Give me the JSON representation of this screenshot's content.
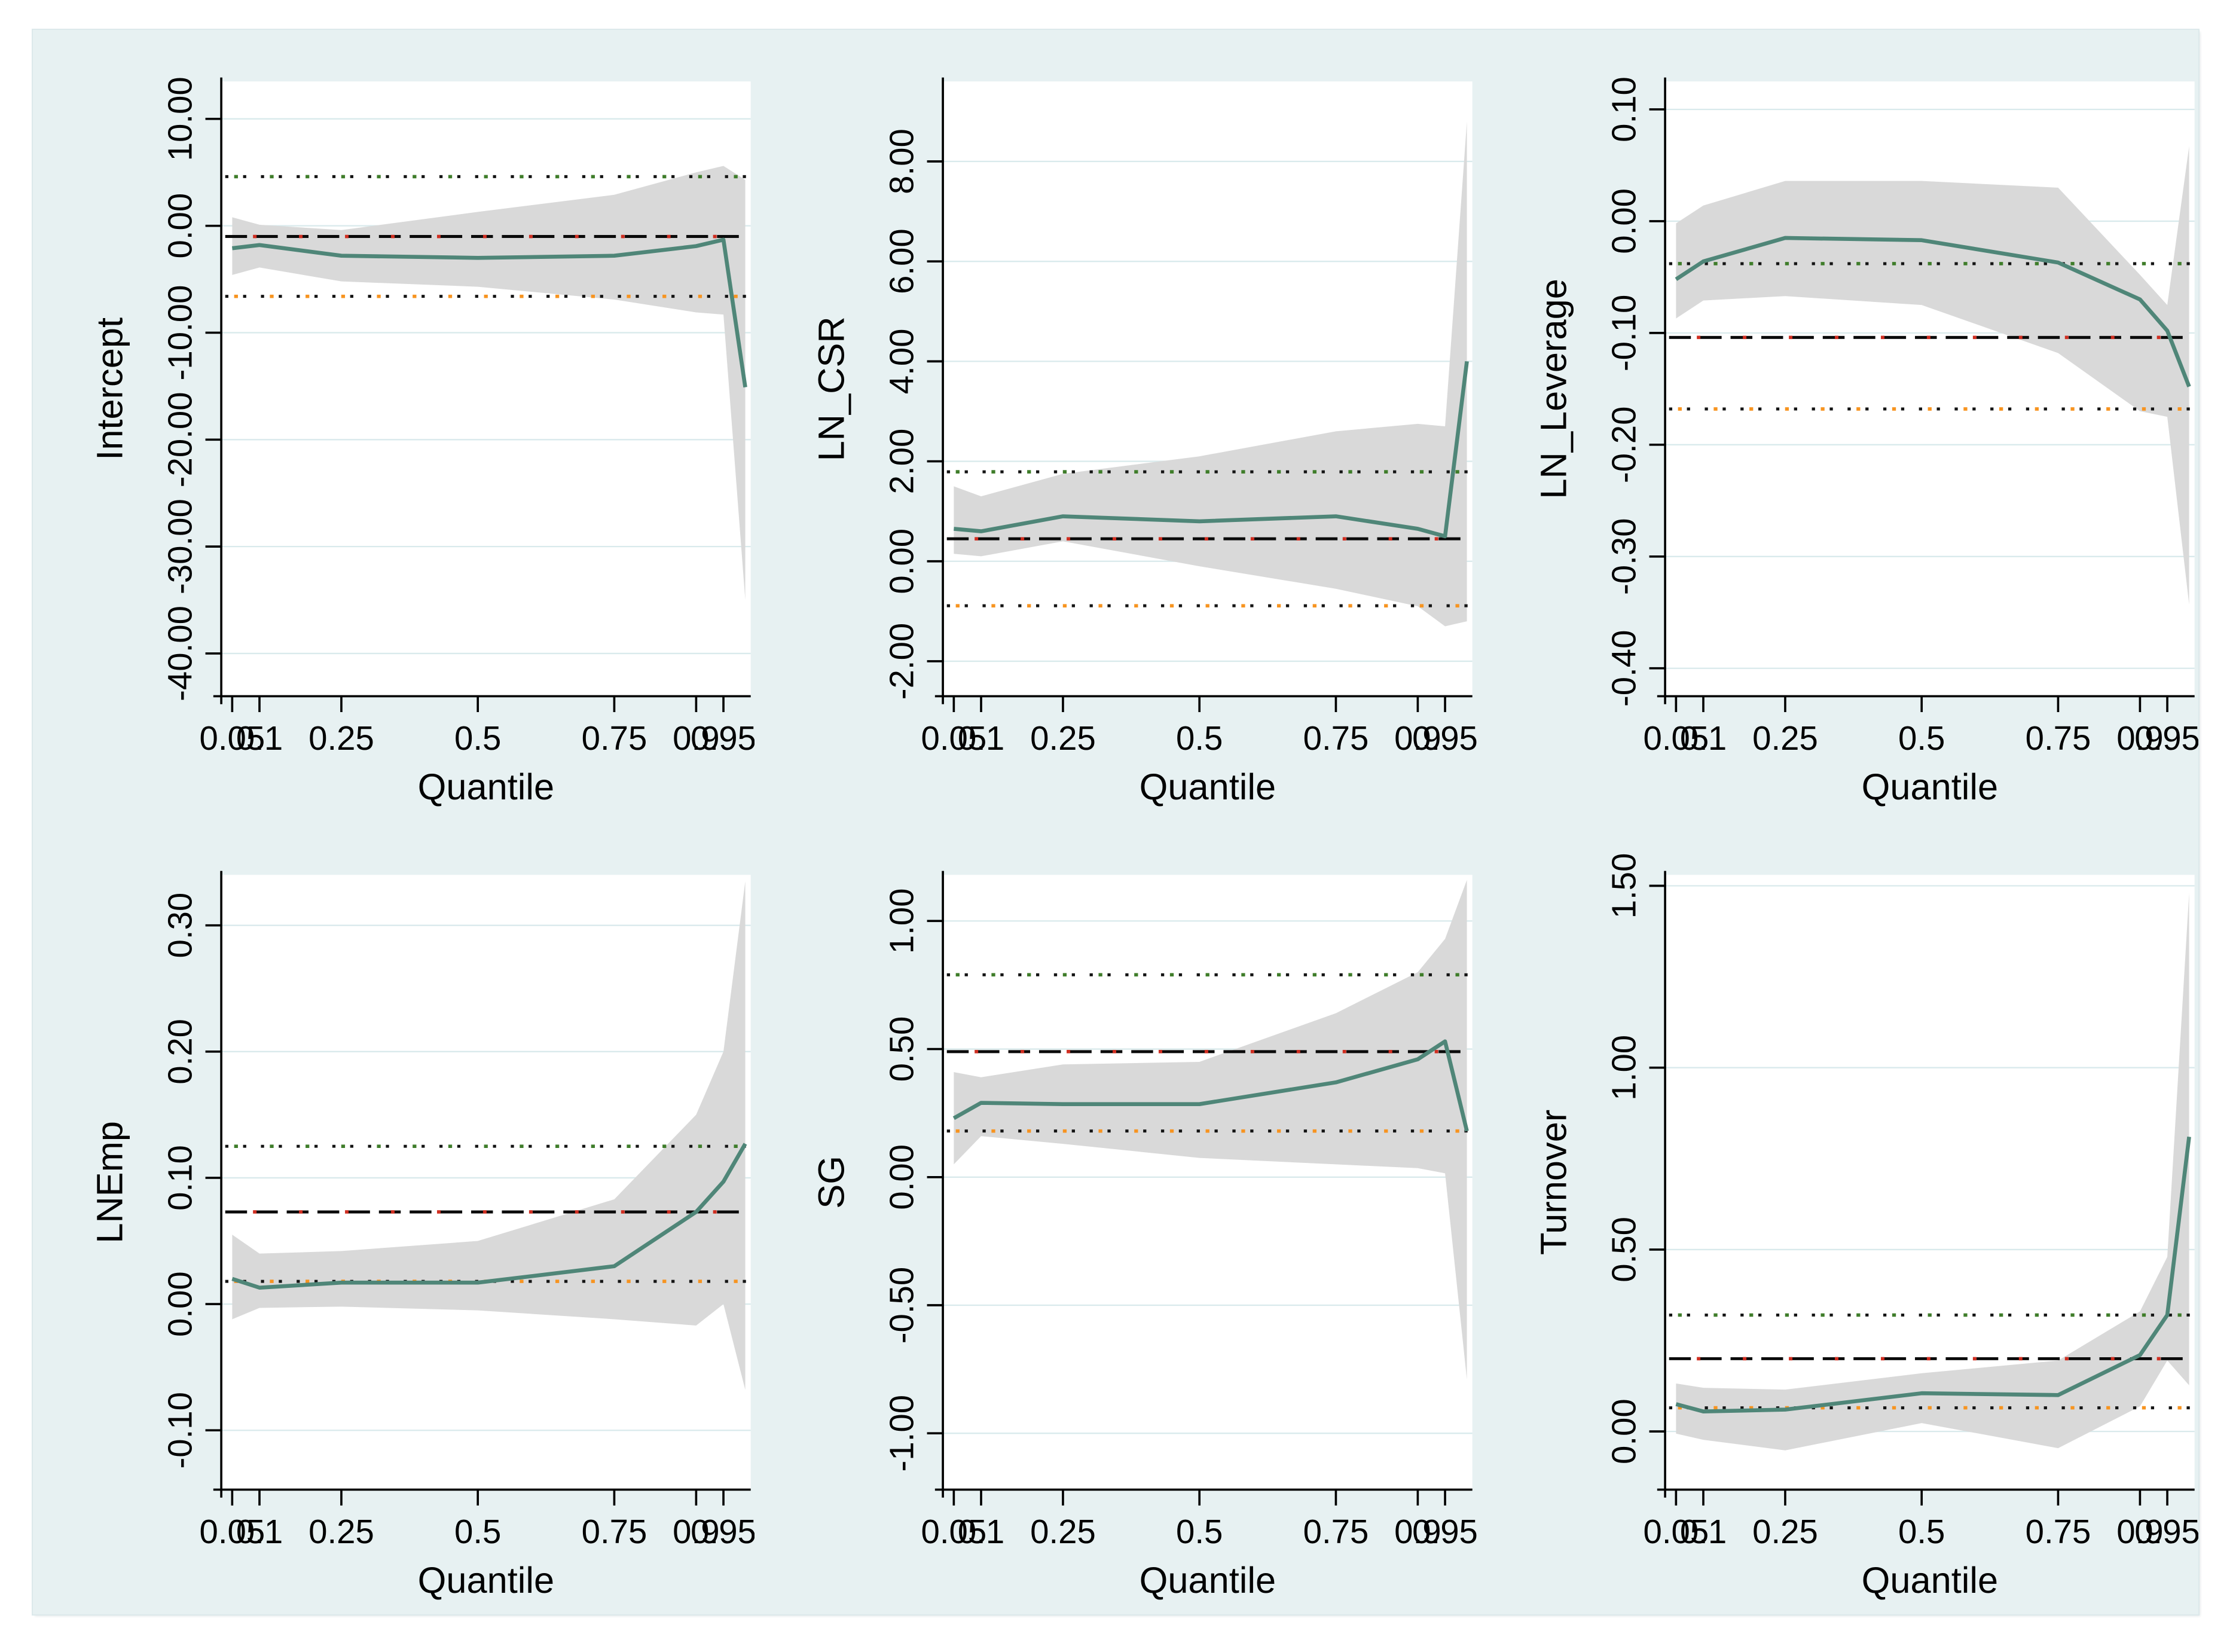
{
  "colors": {
    "page_background": "#ffffff",
    "region_background": "#e7f1f2",
    "plot_background": "#ffffff",
    "gridline": "#d9eaec",
    "axis": "#000000",
    "text": "#000000",
    "ci_band": "#d9d9d9",
    "qreg_line": "#4f8678",
    "ols_dash": "#0a0a0a",
    "ols_dash_accent": "#cf2e21",
    "ols_ci_dot_black": "#141414",
    "ols_ci_dot_green": "#3f7d2a",
    "ols_ci_dot_orange": "#f79420"
  },
  "chart_data": {
    "type": "line",
    "xlabel": "Quantile",
    "xlim": [
      0.03,
      1.0
    ],
    "x_tick_values": [
      0.05,
      0.1,
      0.25,
      0.5,
      0.75,
      0.9,
      0.95
    ],
    "x_tick_labels": [
      "0.05",
      "0.1",
      "0.25",
      "0.5",
      "0.75",
      "0.9",
      "0.95"
    ],
    "quantiles": [
      0.05,
      0.1,
      0.25,
      0.5,
      0.75,
      0.9,
      0.95,
      0.99
    ],
    "grid": true,
    "legend_position": "none",
    "panels": [
      {
        "id": "intercept",
        "ylabel": "Intercept",
        "ylim": [
          -44,
          13.5
        ],
        "ytick_values": [
          10,
          0,
          -10,
          -20,
          -30,
          -40
        ],
        "ytick_labels": [
          "10.00",
          "0.00",
          "-10.00",
          "-20.00",
          "-30.00",
          "-40.00"
        ],
        "qreg_estimate": [
          -2.1,
          -1.8,
          -2.8,
          -3.0,
          -2.8,
          -1.9,
          -1.3,
          -15.1
        ],
        "band_upper": [
          0.8,
          0.1,
          -0.4,
          1.3,
          2.9,
          5.0,
          5.6,
          4.3
        ],
        "band_lower": [
          -4.6,
          -3.9,
          -5.2,
          -5.7,
          -6.9,
          -8.1,
          -8.3,
          -35.0
        ],
        "ols_estimate": -1.0,
        "ols_ci_upper": 4.6,
        "ols_ci_lower": -6.6
      },
      {
        "id": "ln-csr",
        "ylabel": "LN_CSR",
        "ylim": [
          -2.7,
          9.6
        ],
        "ytick_values": [
          8,
          6,
          4,
          2,
          0,
          -2
        ],
        "ytick_labels": [
          "8.00",
          "6.00",
          "4.00",
          "2.00",
          "0.00",
          "-2.00"
        ],
        "qreg_estimate": [
          0.65,
          0.6,
          0.9,
          0.8,
          0.9,
          0.65,
          0.5,
          4.0
        ],
        "band_upper": [
          1.5,
          1.3,
          1.75,
          2.1,
          2.6,
          2.75,
          2.7,
          8.8
        ],
        "band_lower": [
          0.15,
          0.1,
          0.4,
          -0.1,
          -0.55,
          -0.9,
          -1.3,
          -1.2
        ],
        "ols_estimate": 0.45,
        "ols_ci_upper": 1.79,
        "ols_ci_lower": -0.89
      },
      {
        "id": "ln-leverage",
        "ylabel": "LN_Leverage",
        "ylim": [
          -0.425,
          0.125
        ],
        "ytick_values": [
          0.1,
          0.0,
          -0.1,
          -0.2,
          -0.3,
          -0.4
        ],
        "ytick_labels": [
          "0.10",
          "0.00",
          "-0.10",
          "-0.20",
          "-0.30",
          "-0.40"
        ],
        "qreg_estimate": [
          -0.052,
          -0.036,
          -0.015,
          -0.017,
          -0.037,
          -0.07,
          -0.098,
          -0.148
        ],
        "band_upper": [
          -0.002,
          0.014,
          0.036,
          0.036,
          0.03,
          -0.048,
          -0.075,
          0.067
        ],
        "band_lower": [
          -0.087,
          -0.071,
          -0.067,
          -0.075,
          -0.118,
          -0.17,
          -0.175,
          -0.343
        ],
        "ols_estimate": -0.104,
        "ols_ci_upper": -0.038,
        "ols_ci_lower": -0.168
      },
      {
        "id": "lnemp",
        "ylabel": "LNEmp",
        "ylim": [
          -0.147,
          0.34
        ],
        "ytick_values": [
          0.3,
          0.2,
          0.1,
          0.0,
          -0.1
        ],
        "ytick_labels": [
          "0.30",
          "0.20",
          "0.10",
          "0.00",
          "-0.10"
        ],
        "qreg_estimate": [
          0.02,
          0.013,
          0.017,
          0.017,
          0.03,
          0.073,
          0.097,
          0.127
        ],
        "band_upper": [
          0.055,
          0.04,
          0.042,
          0.05,
          0.083,
          0.15,
          0.2,
          0.335
        ],
        "band_lower": [
          -0.012,
          -0.003,
          -0.002,
          -0.005,
          -0.012,
          -0.017,
          0.0,
          -0.068
        ],
        "ols_estimate": 0.073,
        "ols_ci_upper": 0.125,
        "ols_ci_lower": 0.018
      },
      {
        "id": "sg",
        "ylabel": "SG",
        "ylim": [
          -1.22,
          1.18
        ],
        "ytick_values": [
          1.0,
          0.5,
          0.0,
          -0.5,
          -1.0
        ],
        "ytick_labels": [
          "1.00",
          "0.50",
          "0.00",
          "-0.50",
          "-1.00"
        ],
        "qreg_estimate": [
          0.23,
          0.29,
          0.285,
          0.285,
          0.37,
          0.46,
          0.53,
          0.18
        ],
        "band_upper": [
          0.41,
          0.39,
          0.44,
          0.45,
          0.64,
          0.8,
          0.93,
          1.16
        ],
        "band_lower": [
          0.05,
          0.16,
          0.13,
          0.075,
          0.05,
          0.035,
          0.015,
          -0.79
        ],
        "ols_estimate": 0.49,
        "ols_ci_upper": 0.79,
        "ols_ci_lower": 0.18
      },
      {
        "id": "turnover",
        "ylabel": "Turnover",
        "ylim": [
          -0.16,
          1.53
        ],
        "ytick_values": [
          1.5,
          1.0,
          0.5,
          0.0
        ],
        "ytick_labels": [
          "1.50",
          "1.00",
          "0.50",
          "0.00"
        ],
        "qreg_estimate": [
          0.075,
          0.055,
          0.06,
          0.105,
          0.1,
          0.21,
          0.32,
          0.81
        ],
        "band_upper": [
          0.132,
          0.12,
          0.115,
          0.16,
          0.195,
          0.33,
          0.48,
          1.48
        ],
        "band_lower": [
          -0.006,
          -0.023,
          -0.052,
          0.023,
          -0.046,
          0.069,
          0.195,
          0.127
        ],
        "ols_estimate": 0.2,
        "ols_ci_upper": 0.32,
        "ols_ci_lower": 0.065
      }
    ]
  }
}
